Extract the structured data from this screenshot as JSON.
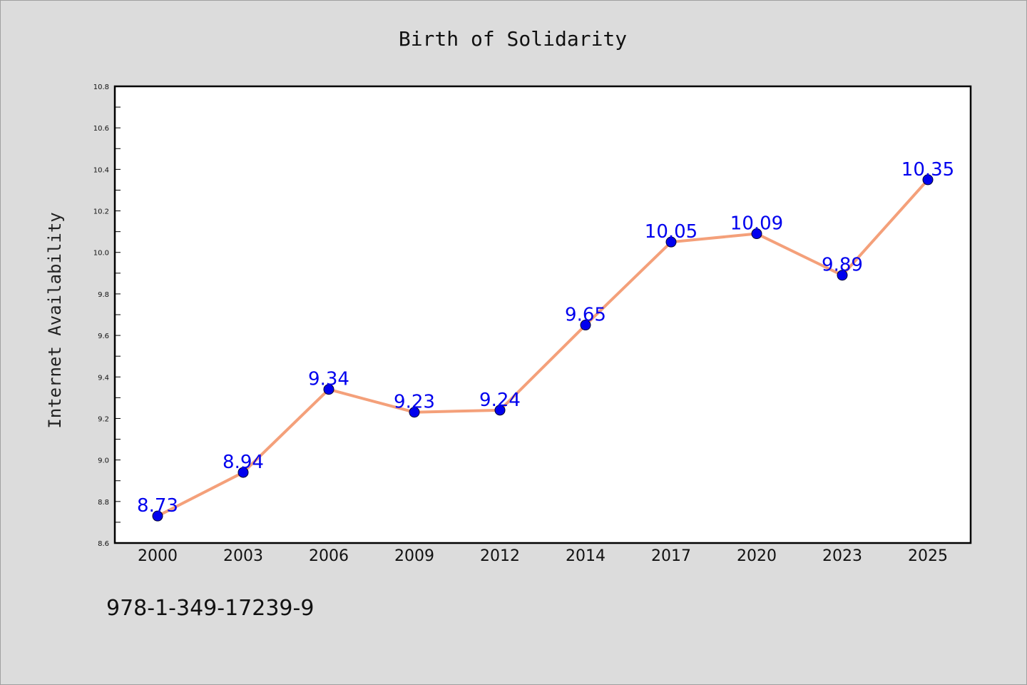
{
  "chart_data": {
    "type": "line",
    "title": "Birth of Solidarity",
    "xlabel": "",
    "ylabel": "Internet Availability",
    "categories": [
      "2000",
      "2003",
      "2006",
      "2009",
      "2012",
      "2014",
      "2017",
      "2020",
      "2023",
      "2025"
    ],
    "series": [
      {
        "values": [
          8.73,
          8.94,
          9.34,
          9.23,
          9.24,
          9.65,
          10.05,
          10.09,
          9.89,
          10.35
        ],
        "data_labels": [
          "8.73",
          "8.94",
          "9.34",
          "9.23",
          "9.24",
          "9.65",
          "10.05",
          "10.09",
          "9.89",
          "10.35"
        ],
        "line_color": "#f4a07a",
        "marker_color": "#0000ee",
        "label_color": "#0000ee"
      }
    ],
    "ylim": [
      8.6,
      10.8
    ],
    "yticks": [
      "8.6",
      "8.8",
      "9.0",
      "9.2",
      "9.4",
      "9.6",
      "9.8",
      "10.0",
      "10.2",
      "10.4",
      "10.6",
      "10.8"
    ],
    "grid": false,
    "legend": "none",
    "plot_background": "#ffffff",
    "figure_background": "#dcdcdc"
  },
  "footer": {
    "code": "978-1-349-17239-9"
  }
}
